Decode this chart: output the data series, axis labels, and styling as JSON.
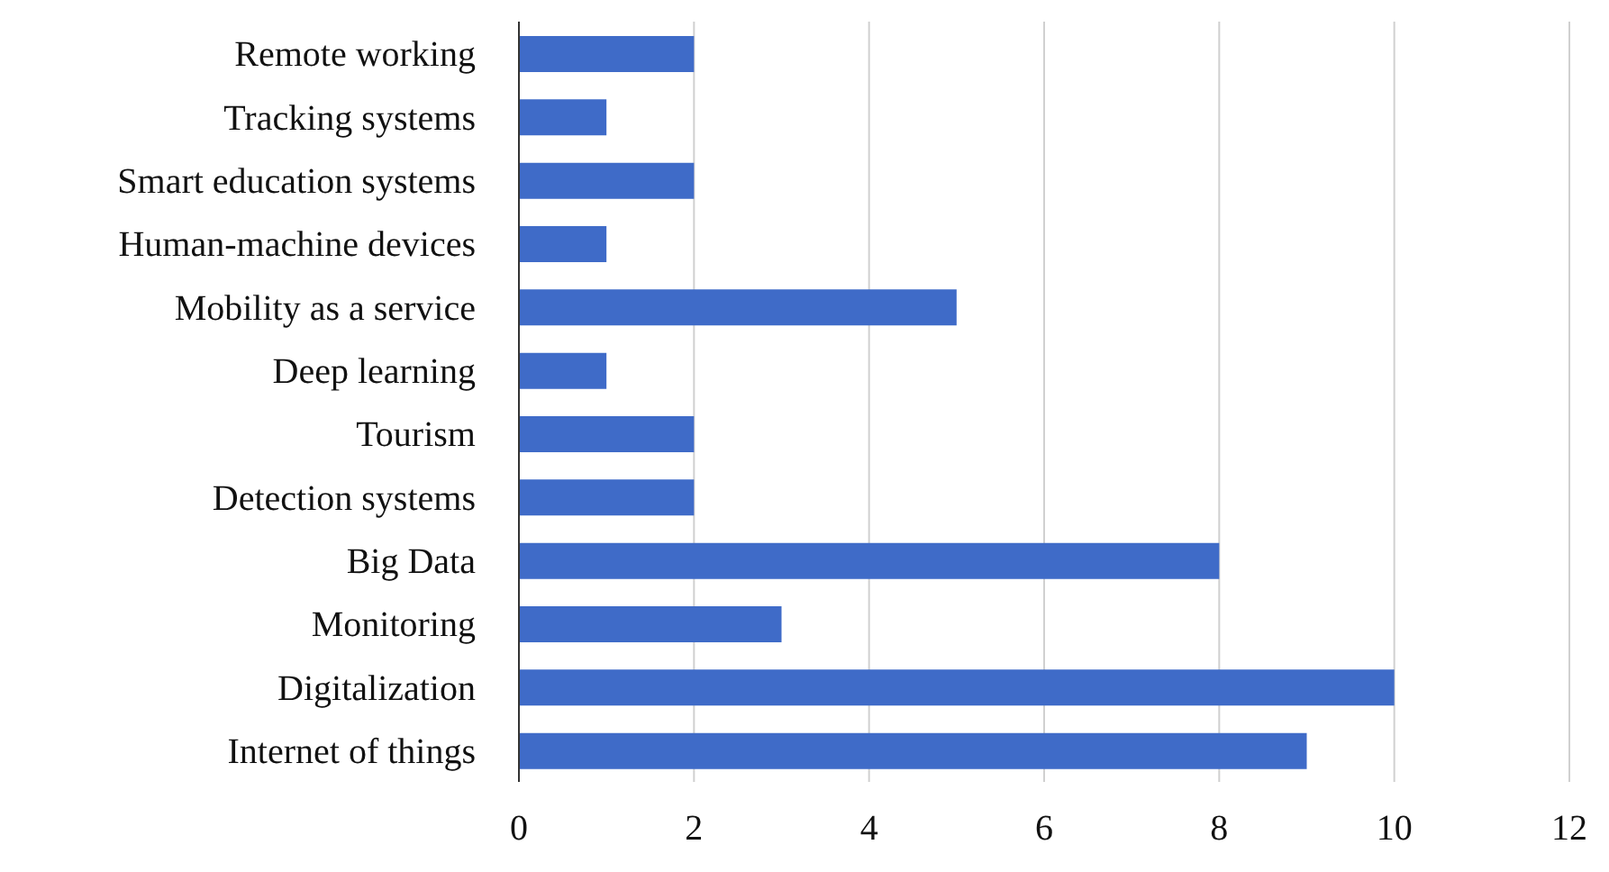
{
  "chart_data": {
    "type": "bar",
    "orientation": "horizontal",
    "categories": [
      "Remote working",
      "Tracking systems",
      "Smart education systems",
      "Human-machine devices",
      "Mobility as a service",
      "Deep learning",
      "Tourism",
      "Detection systems",
      "Big Data",
      "Monitoring",
      "Digitalization",
      "Internet of things"
    ],
    "values": [
      2,
      1,
      2,
      1,
      5,
      1,
      2,
      2,
      8,
      3,
      10,
      9
    ],
    "color": "#3f6bc8",
    "xlim": [
      0,
      12
    ],
    "xticks": [
      0,
      2,
      4,
      6,
      8,
      10,
      12
    ],
    "grid": "x"
  }
}
